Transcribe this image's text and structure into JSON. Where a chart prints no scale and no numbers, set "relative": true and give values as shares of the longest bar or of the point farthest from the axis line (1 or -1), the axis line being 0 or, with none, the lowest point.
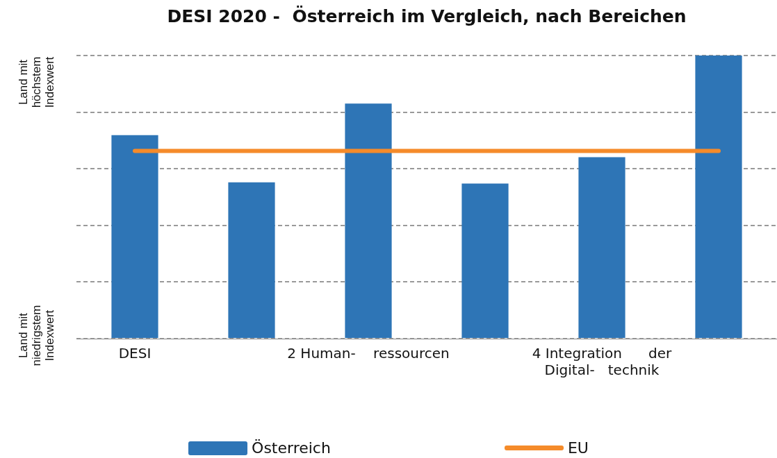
{
  "chart_data": {
    "type": "bar",
    "title": "DESI 2020 -  Österreich im Vergleich, nach Bereichen",
    "relative": true,
    "grid": "y",
    "legend": "bottom",
    "categories": [
      "DESI",
      null,
      "2 Human-    ressourcen",
      null,
      "4 Integration      der Digital-   technik",
      null
    ],
    "series": [
      {
        "name": "Österreich",
        "color": "#2e75b6",
        "values": [
          0.719,
          0.552,
          0.83,
          0.548,
          0.641,
          1
        ]
      },
      {
        "name": "EU",
        "type": "line",
        "color": "#f58b2a",
        "values": [
          0.663,
          0.663,
          0.663,
          0.663,
          0.663,
          0.663
        ]
      }
    ],
    "annotations": [
      "Land mit höchstem Indexwert",
      "Land mit niedrigstem Indexwert"
    ]
  }
}
